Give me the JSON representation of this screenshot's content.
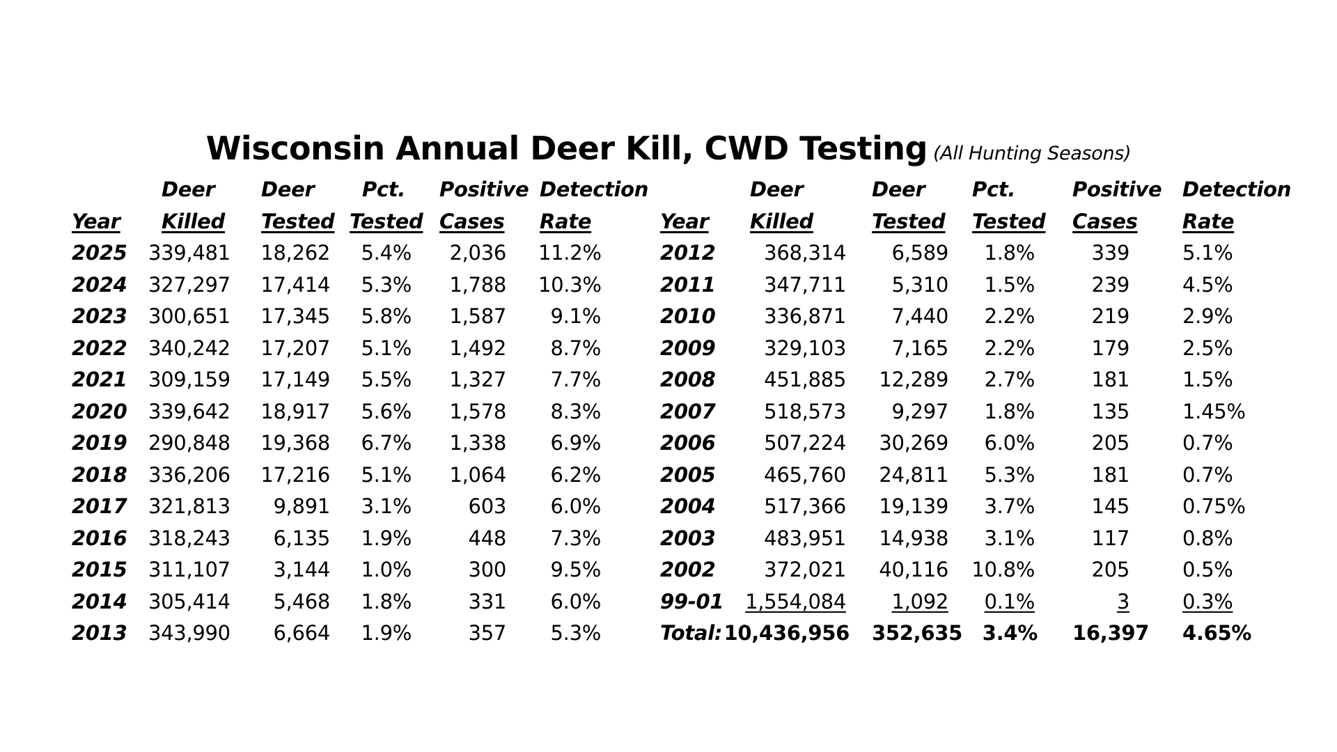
{
  "title": "Wisconsin Annual Deer Kill, CWD Testing",
  "subtitle": "(All Hunting Seasons)",
  "headers": {
    "row1": [
      "",
      "Deer",
      "Deer",
      "Pct.",
      "Positive",
      "Detection"
    ],
    "row2": [
      "Year",
      "Killed",
      "Tested",
      "Tested",
      "Cases",
      "Rate"
    ]
  },
  "left_rows": [
    {
      "year": "2025",
      "killed": "339,481",
      "tested": "18,262",
      "pct": "5.4%",
      "cases": "2,036",
      "rate": "11.2%"
    },
    {
      "year": "2024",
      "killed": "327,297",
      "tested": "17,414",
      "pct": "5.3%",
      "cases": "1,788",
      "rate": "10.3%"
    },
    {
      "year": "2023",
      "killed": "300,651",
      "tested": "17,345",
      "pct": "5.8%",
      "cases": "1,587",
      "rate": "9.1%"
    },
    {
      "year": "2022",
      "killed": "340,242",
      "tested": "17,207",
      "pct": "5.1%",
      "cases": "1,492",
      "rate": "8.7%"
    },
    {
      "year": "2021",
      "killed": "309,159",
      "tested": "17,149",
      "pct": "5.5%",
      "cases": "1,327",
      "rate": "7.7%"
    },
    {
      "year": "2020",
      "killed": "339,642",
      "tested": "18,917",
      "pct": "5.6%",
      "cases": "1,578",
      "rate": "8.3%"
    },
    {
      "year": "2019",
      "killed": "290,848",
      "tested": "19,368",
      "pct": "6.7%",
      "cases": "1,338",
      "rate": "6.9%"
    },
    {
      "year": "2018",
      "killed": "336,206",
      "tested": "17,216",
      "pct": "5.1%",
      "cases": "1,064",
      "rate": "6.2%"
    },
    {
      "year": "2017",
      "killed": "321,813",
      "tested": "9,891",
      "pct": "3.1%",
      "cases": "603",
      "rate": "6.0%"
    },
    {
      "year": "2016",
      "killed": "318,243",
      "tested": "6,135",
      "pct": "1.9%",
      "cases": "448",
      "rate": "7.3%"
    },
    {
      "year": "2015",
      "killed": "311,107",
      "tested": "3,144",
      "pct": "1.0%",
      "cases": "300",
      "rate": "9.5%"
    },
    {
      "year": "2014",
      "killed": "305,414",
      "tested": "5,468",
      "pct": "1.8%",
      "cases": "331",
      "rate": "6.0%"
    },
    {
      "year": "2013",
      "killed": "343,990",
      "tested": "6,664",
      "pct": "1.9%",
      "cases": "357",
      "rate": "5.3%"
    }
  ],
  "right_rows": [
    {
      "year": "2012",
      "killed": "368,314",
      "tested": "6,589",
      "pct": "1.8%",
      "cases": "339",
      "rate": "5.1%"
    },
    {
      "year": "2011",
      "killed": "347,711",
      "tested": "5,310",
      "pct": "1.5%",
      "cases": "239",
      "rate": "4.5%"
    },
    {
      "year": "2010",
      "killed": "336,871",
      "tested": "7,440",
      "pct": "2.2%",
      "cases": "219",
      "rate": "2.9%"
    },
    {
      "year": "2009",
      "killed": "329,103",
      "tested": "7,165",
      "pct": "2.2%",
      "cases": "179",
      "rate": "2.5%"
    },
    {
      "year": "2008",
      "killed": "451,885",
      "tested": "12,289",
      "pct": "2.7%",
      "cases": "181",
      "rate": "1.5%"
    },
    {
      "year": "2007",
      "killed": "518,573",
      "tested": "9,297",
      "pct": "1.8%",
      "cases": "135",
      "rate": "1.45%"
    },
    {
      "year": "2006",
      "killed": "507,224",
      "tested": "30,269",
      "pct": "6.0%",
      "cases": "205",
      "rate": "0.7%"
    },
    {
      "year": "2005",
      "killed": "465,760",
      "tested": "24,811",
      "pct": "5.3%",
      "cases": "181",
      "rate": "0.7%"
    },
    {
      "year": "2004",
      "killed": "517,366",
      "tested": "19,139",
      "pct": "3.7%",
      "cases": "145",
      "rate": "0.75%"
    },
    {
      "year": "2003",
      "killed": "483,951",
      "tested": "14,938",
      "pct": "3.1%",
      "cases": "117",
      "rate": "0.8%"
    },
    {
      "year": "2002",
      "killed": "372,021",
      "tested": "40,116",
      "pct": "10.8%",
      "cases": "205",
      "rate": "0.5%"
    },
    {
      "year": "99-01",
      "killed": "1,554,084",
      "tested": "1,092",
      "pct": "0.1%",
      "cases": "3",
      "rate": "0.3%"
    }
  ],
  "total": {
    "label": "Total:",
    "killed": "10,436,956",
    "tested": "352,635",
    "pct": "3.4%",
    "cases": "16,397",
    "rate": "4.65%"
  }
}
